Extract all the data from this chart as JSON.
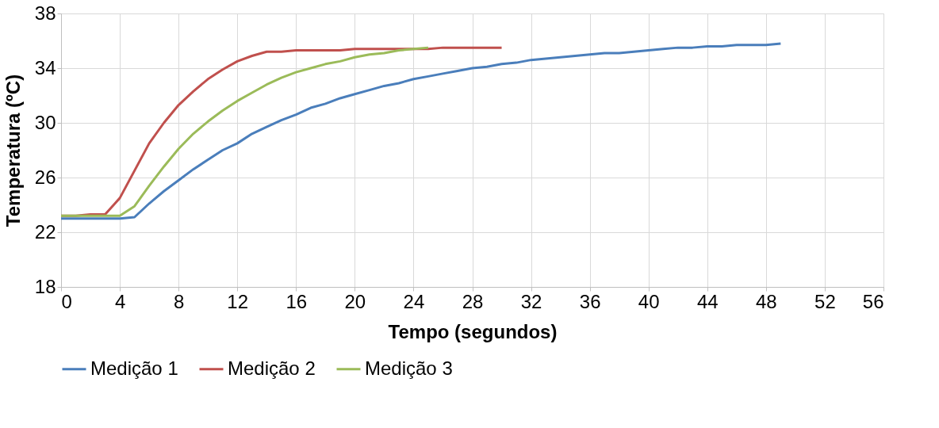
{
  "chart_data": {
    "type": "line",
    "xlabel": "Tempo (segundos)",
    "ylabel": "Temperatura (ºC)",
    "xlim": [
      0,
      56
    ],
    "xticks": [
      0,
      4,
      8,
      12,
      16,
      20,
      24,
      28,
      32,
      36,
      40,
      44,
      48,
      52,
      56
    ],
    "ylim": [
      18,
      38
    ],
    "yticks": [
      18,
      22,
      26,
      30,
      34,
      38
    ],
    "grid": true,
    "legend": "bottom",
    "marker": "none",
    "line_style": "solid",
    "series": [
      {
        "name": "Medição 1",
        "color": "#4a7ebb",
        "x": [
          0,
          1,
          2,
          3,
          4,
          5,
          6,
          7,
          8,
          9,
          10,
          11,
          12,
          13,
          14,
          15,
          16,
          17,
          18,
          19,
          20,
          21,
          22,
          23,
          24,
          25,
          26,
          27,
          28,
          29,
          30,
          31,
          32,
          33,
          34,
          35,
          36,
          37,
          38,
          39,
          40,
          41,
          42,
          43,
          44,
          45,
          46,
          47,
          48,
          49
        ],
        "values": [
          23.0,
          23.0,
          23.0,
          23.0,
          23.0,
          23.1,
          24.1,
          25.0,
          25.8,
          26.6,
          27.3,
          28.0,
          28.5,
          29.2,
          29.7,
          30.2,
          30.6,
          31.1,
          31.4,
          31.8,
          32.1,
          32.4,
          32.7,
          32.9,
          33.2,
          33.4,
          33.6,
          33.8,
          34.0,
          34.1,
          34.3,
          34.4,
          34.6,
          34.7,
          34.8,
          34.9,
          35.0,
          35.1,
          35.1,
          35.2,
          35.3,
          35.4,
          35.5,
          35.5,
          35.6,
          35.6,
          35.7,
          35.7,
          35.7,
          35.8
        ]
      },
      {
        "name": "Medição 2",
        "color": "#c0504d",
        "x": [
          0,
          1,
          2,
          3,
          4,
          5,
          6,
          7,
          8,
          9,
          10,
          11,
          12,
          13,
          14,
          15,
          16,
          17,
          18,
          19,
          20,
          21,
          22,
          23,
          24,
          25,
          26,
          27,
          28,
          29,
          30
        ],
        "values": [
          23.2,
          23.2,
          23.3,
          23.3,
          24.5,
          26.5,
          28.5,
          30.0,
          31.3,
          32.3,
          33.2,
          33.9,
          34.5,
          34.9,
          35.2,
          35.2,
          35.3,
          35.3,
          35.3,
          35.3,
          35.4,
          35.4,
          35.4,
          35.4,
          35.4,
          35.4,
          35.5,
          35.5,
          35.5,
          35.5,
          35.5
        ]
      },
      {
        "name": "Medição 3",
        "color": "#9bbb59",
        "x": [
          0,
          1,
          2,
          3,
          4,
          5,
          6,
          7,
          8,
          9,
          10,
          11,
          12,
          13,
          14,
          15,
          16,
          17,
          18,
          19,
          20,
          21,
          22,
          23,
          24,
          25
        ],
        "values": [
          23.2,
          23.2,
          23.2,
          23.2,
          23.2,
          23.9,
          25.4,
          26.8,
          28.1,
          29.2,
          30.1,
          30.9,
          31.6,
          32.2,
          32.8,
          33.3,
          33.7,
          34.0,
          34.3,
          34.5,
          34.8,
          35.0,
          35.1,
          35.3,
          35.4,
          35.5
        ]
      }
    ]
  }
}
